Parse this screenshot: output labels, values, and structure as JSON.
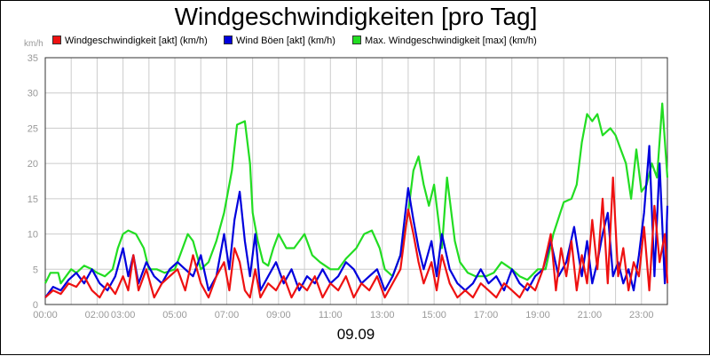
{
  "chart_data": {
    "type": "line",
    "title": "Windgeschwindigkeiten [pro Tag]",
    "ylabel": "km/h",
    "xlabel": "09.09",
    "ylim": [
      0,
      35
    ],
    "yticks": [
      "0",
      "5",
      "10",
      "15",
      "20",
      "25",
      "30",
      "35"
    ],
    "xlim": [
      0,
      24
    ],
    "xticks": [
      {
        "x": 0,
        "label": "00:00"
      },
      {
        "x": 2.0,
        "label": "02:00"
      },
      {
        "x": 3.0,
        "label": "03:00"
      },
      {
        "x": 5.0,
        "label": "05:00"
      },
      {
        "x": 7.0,
        "label": "07:00"
      },
      {
        "x": 9.0,
        "label": "09:00"
      },
      {
        "x": 11.0,
        "label": "11:00"
      },
      {
        "x": 13.0,
        "label": "13:00"
      },
      {
        "x": 15.0,
        "label": "15:00"
      },
      {
        "x": 17.0,
        "label": "17:00"
      },
      {
        "x": 19.0,
        "label": "19:00"
      },
      {
        "x": 21.0,
        "label": "21:00"
      },
      {
        "x": 23.0,
        "label": "23:00"
      }
    ],
    "grid": true,
    "legend_position": "top",
    "series": [
      {
        "name": "Max. Windgeschwindigkeit [max] (km/h)",
        "color": "#22dd22",
        "points": [
          [
            0,
            3
          ],
          [
            0.2,
            4.5
          ],
          [
            0.5,
            4.5
          ],
          [
            0.6,
            3
          ],
          [
            0.8,
            4
          ],
          [
            1,
            5
          ],
          [
            1.2,
            4.5
          ],
          [
            1.5,
            5.5
          ],
          [
            1.8,
            5
          ],
          [
            2,
            4.5
          ],
          [
            2.3,
            4
          ],
          [
            2.6,
            5
          ],
          [
            2.8,
            8
          ],
          [
            3,
            10
          ],
          [
            3.2,
            10.5
          ],
          [
            3.5,
            10
          ],
          [
            3.8,
            8
          ],
          [
            4,
            5
          ],
          [
            4.3,
            5
          ],
          [
            4.6,
            4.5
          ],
          [
            5,
            5
          ],
          [
            5.3,
            8
          ],
          [
            5.5,
            10
          ],
          [
            5.7,
            9
          ],
          [
            6,
            5
          ],
          [
            6.3,
            6
          ],
          [
            6.6,
            9
          ],
          [
            6.9,
            13
          ],
          [
            7.2,
            19
          ],
          [
            7.4,
            25.5
          ],
          [
            7.7,
            26
          ],
          [
            7.9,
            20
          ],
          [
            8,
            13
          ],
          [
            8.2,
            9
          ],
          [
            8.4,
            6
          ],
          [
            8.6,
            5.5
          ],
          [
            8.8,
            8
          ],
          [
            9,
            10
          ],
          [
            9.3,
            8
          ],
          [
            9.6,
            8
          ],
          [
            10,
            10
          ],
          [
            10.3,
            7
          ],
          [
            10.6,
            6
          ],
          [
            11,
            5
          ],
          [
            11.3,
            5
          ],
          [
            11.6,
            6.5
          ],
          [
            12,
            8
          ],
          [
            12.3,
            10
          ],
          [
            12.6,
            10.5
          ],
          [
            12.9,
            8
          ],
          [
            13.1,
            5
          ],
          [
            13.4,
            4
          ],
          [
            13.7,
            7
          ],
          [
            14,
            13
          ],
          [
            14.2,
            19
          ],
          [
            14.4,
            21
          ],
          [
            14.6,
            17
          ],
          [
            14.8,
            14
          ],
          [
            15,
            17
          ],
          [
            15.3,
            8
          ],
          [
            15.5,
            18
          ],
          [
            15.8,
            9
          ],
          [
            16,
            6
          ],
          [
            16.3,
            4.5
          ],
          [
            16.6,
            4
          ],
          [
            17,
            4
          ],
          [
            17.3,
            4.5
          ],
          [
            17.6,
            6
          ],
          [
            18,
            5
          ],
          [
            18.3,
            4
          ],
          [
            18.6,
            3.5
          ],
          [
            19,
            5
          ],
          [
            19.3,
            5
          ],
          [
            19.6,
            10
          ],
          [
            20,
            14.5
          ],
          [
            20.3,
            15
          ],
          [
            20.5,
            17
          ],
          [
            20.7,
            23
          ],
          [
            20.9,
            27
          ],
          [
            21.1,
            26
          ],
          [
            21.3,
            27
          ],
          [
            21.5,
            24
          ],
          [
            21.8,
            25
          ],
          [
            22,
            24
          ],
          [
            22.2,
            22
          ],
          [
            22.4,
            20
          ],
          [
            22.6,
            15
          ],
          [
            22.8,
            22
          ],
          [
            23,
            16
          ],
          [
            23.2,
            17
          ],
          [
            23.4,
            20
          ],
          [
            23.6,
            18
          ],
          [
            23.8,
            28.5
          ],
          [
            24,
            18
          ]
        ]
      },
      {
        "name": "Wind Böen [akt] (km/h)",
        "color": "#0000dd",
        "points": [
          [
            0,
            1
          ],
          [
            0.3,
            2.5
          ],
          [
            0.6,
            2
          ],
          [
            0.9,
            3.5
          ],
          [
            1.2,
            4.5
          ],
          [
            1.5,
            3
          ],
          [
            1.8,
            5
          ],
          [
            2.1,
            3
          ],
          [
            2.4,
            2
          ],
          [
            2.7,
            4
          ],
          [
            3,
            8
          ],
          [
            3.2,
            4
          ],
          [
            3.4,
            7
          ],
          [
            3.6,
            3
          ],
          [
            3.9,
            6
          ],
          [
            4.2,
            4
          ],
          [
            4.5,
            3
          ],
          [
            4.8,
            5
          ],
          [
            5.1,
            6
          ],
          [
            5.4,
            5
          ],
          [
            5.7,
            4
          ],
          [
            6,
            7
          ],
          [
            6.3,
            2
          ],
          [
            6.6,
            4
          ],
          [
            6.9,
            10
          ],
          [
            7.1,
            5
          ],
          [
            7.3,
            12
          ],
          [
            7.5,
            16
          ],
          [
            7.7,
            9
          ],
          [
            7.9,
            4
          ],
          [
            8.1,
            10
          ],
          [
            8.3,
            2
          ],
          [
            8.6,
            4
          ],
          [
            8.9,
            6
          ],
          [
            9.2,
            3
          ],
          [
            9.5,
            5
          ],
          [
            9.8,
            2
          ],
          [
            10.1,
            4
          ],
          [
            10.4,
            3
          ],
          [
            10.7,
            5
          ],
          [
            11,
            3
          ],
          [
            11.3,
            4
          ],
          [
            11.6,
            6
          ],
          [
            11.9,
            5
          ],
          [
            12.2,
            3
          ],
          [
            12.5,
            4
          ],
          [
            12.8,
            5
          ],
          [
            13.1,
            2
          ],
          [
            13.4,
            4
          ],
          [
            13.7,
            7
          ],
          [
            14,
            16.5
          ],
          [
            14.2,
            12
          ],
          [
            14.4,
            8
          ],
          [
            14.6,
            5
          ],
          [
            14.9,
            9
          ],
          [
            15.1,
            4
          ],
          [
            15.3,
            10
          ],
          [
            15.6,
            5
          ],
          [
            15.9,
            3
          ],
          [
            16.2,
            2
          ],
          [
            16.5,
            3
          ],
          [
            16.8,
            5
          ],
          [
            17.1,
            3
          ],
          [
            17.4,
            4
          ],
          [
            17.7,
            2
          ],
          [
            18,
            5
          ],
          [
            18.3,
            3
          ],
          [
            18.6,
            2
          ],
          [
            18.9,
            4
          ],
          [
            19.2,
            5
          ],
          [
            19.5,
            9
          ],
          [
            19.8,
            4
          ],
          [
            20.1,
            6
          ],
          [
            20.4,
            11
          ],
          [
            20.7,
            4
          ],
          [
            20.9,
            9
          ],
          [
            21.1,
            3
          ],
          [
            21.3,
            6
          ],
          [
            21.5,
            10
          ],
          [
            21.7,
            13
          ],
          [
            21.9,
            4
          ],
          [
            22.1,
            6
          ],
          [
            22.3,
            3
          ],
          [
            22.5,
            5
          ],
          [
            22.7,
            2
          ],
          [
            22.9,
            7
          ],
          [
            23.1,
            13
          ],
          [
            23.3,
            22.5
          ],
          [
            23.5,
            4
          ],
          [
            23.7,
            20
          ],
          [
            23.9,
            3
          ],
          [
            24,
            14
          ]
        ]
      },
      {
        "name": "Windgeschwindigkeit [akt] (km/h)",
        "color": "#ee1111",
        "points": [
          [
            0,
            1
          ],
          [
            0.3,
            2
          ],
          [
            0.6,
            1.5
          ],
          [
            0.9,
            3
          ],
          [
            1.2,
            2.5
          ],
          [
            1.5,
            4
          ],
          [
            1.8,
            2
          ],
          [
            2.1,
            1
          ],
          [
            2.4,
            3
          ],
          [
            2.7,
            1.5
          ],
          [
            3,
            4
          ],
          [
            3.2,
            2
          ],
          [
            3.4,
            7
          ],
          [
            3.6,
            2
          ],
          [
            3.9,
            5
          ],
          [
            4.2,
            1
          ],
          [
            4.5,
            3
          ],
          [
            4.8,
            4
          ],
          [
            5.1,
            5
          ],
          [
            5.4,
            2
          ],
          [
            5.7,
            7
          ],
          [
            6,
            3
          ],
          [
            6.3,
            1
          ],
          [
            6.6,
            4
          ],
          [
            6.9,
            6
          ],
          [
            7.1,
            2
          ],
          [
            7.3,
            8
          ],
          [
            7.5,
            6
          ],
          [
            7.7,
            2
          ],
          [
            7.9,
            1
          ],
          [
            8.1,
            5
          ],
          [
            8.3,
            1
          ],
          [
            8.6,
            3
          ],
          [
            8.9,
            2
          ],
          [
            9.2,
            4
          ],
          [
            9.5,
            1
          ],
          [
            9.8,
            3
          ],
          [
            10.1,
            2
          ],
          [
            10.4,
            4
          ],
          [
            10.7,
            1
          ],
          [
            11,
            3
          ],
          [
            11.3,
            2
          ],
          [
            11.6,
            4
          ],
          [
            11.9,
            1
          ],
          [
            12.2,
            3
          ],
          [
            12.5,
            2
          ],
          [
            12.8,
            4
          ],
          [
            13.1,
            1
          ],
          [
            13.4,
            3
          ],
          [
            13.7,
            5
          ],
          [
            14,
            13.5
          ],
          [
            14.2,
            10
          ],
          [
            14.4,
            6
          ],
          [
            14.6,
            3
          ],
          [
            14.9,
            6
          ],
          [
            15.1,
            2
          ],
          [
            15.3,
            7
          ],
          [
            15.6,
            3
          ],
          [
            15.9,
            1
          ],
          [
            16.2,
            2
          ],
          [
            16.5,
            1
          ],
          [
            16.8,
            3
          ],
          [
            17.1,
            2
          ],
          [
            17.4,
            1
          ],
          [
            17.7,
            3
          ],
          [
            18,
            2
          ],
          [
            18.3,
            1
          ],
          [
            18.6,
            3
          ],
          [
            18.9,
            2
          ],
          [
            19.2,
            5
          ],
          [
            19.5,
            10
          ],
          [
            19.7,
            2
          ],
          [
            19.9,
            8
          ],
          [
            20.1,
            4
          ],
          [
            20.3,
            9
          ],
          [
            20.5,
            2
          ],
          [
            20.7,
            7
          ],
          [
            20.9,
            3
          ],
          [
            21.1,
            12
          ],
          [
            21.3,
            5
          ],
          [
            21.5,
            15
          ],
          [
            21.7,
            3
          ],
          [
            21.9,
            18
          ],
          [
            22.1,
            4
          ],
          [
            22.3,
            8
          ],
          [
            22.5,
            2
          ],
          [
            22.7,
            6
          ],
          [
            22.9,
            4
          ],
          [
            23.1,
            11
          ],
          [
            23.3,
            2
          ],
          [
            23.5,
            14
          ],
          [
            23.7,
            6
          ],
          [
            23.9,
            10
          ],
          [
            24,
            3
          ]
        ]
      }
    ]
  }
}
